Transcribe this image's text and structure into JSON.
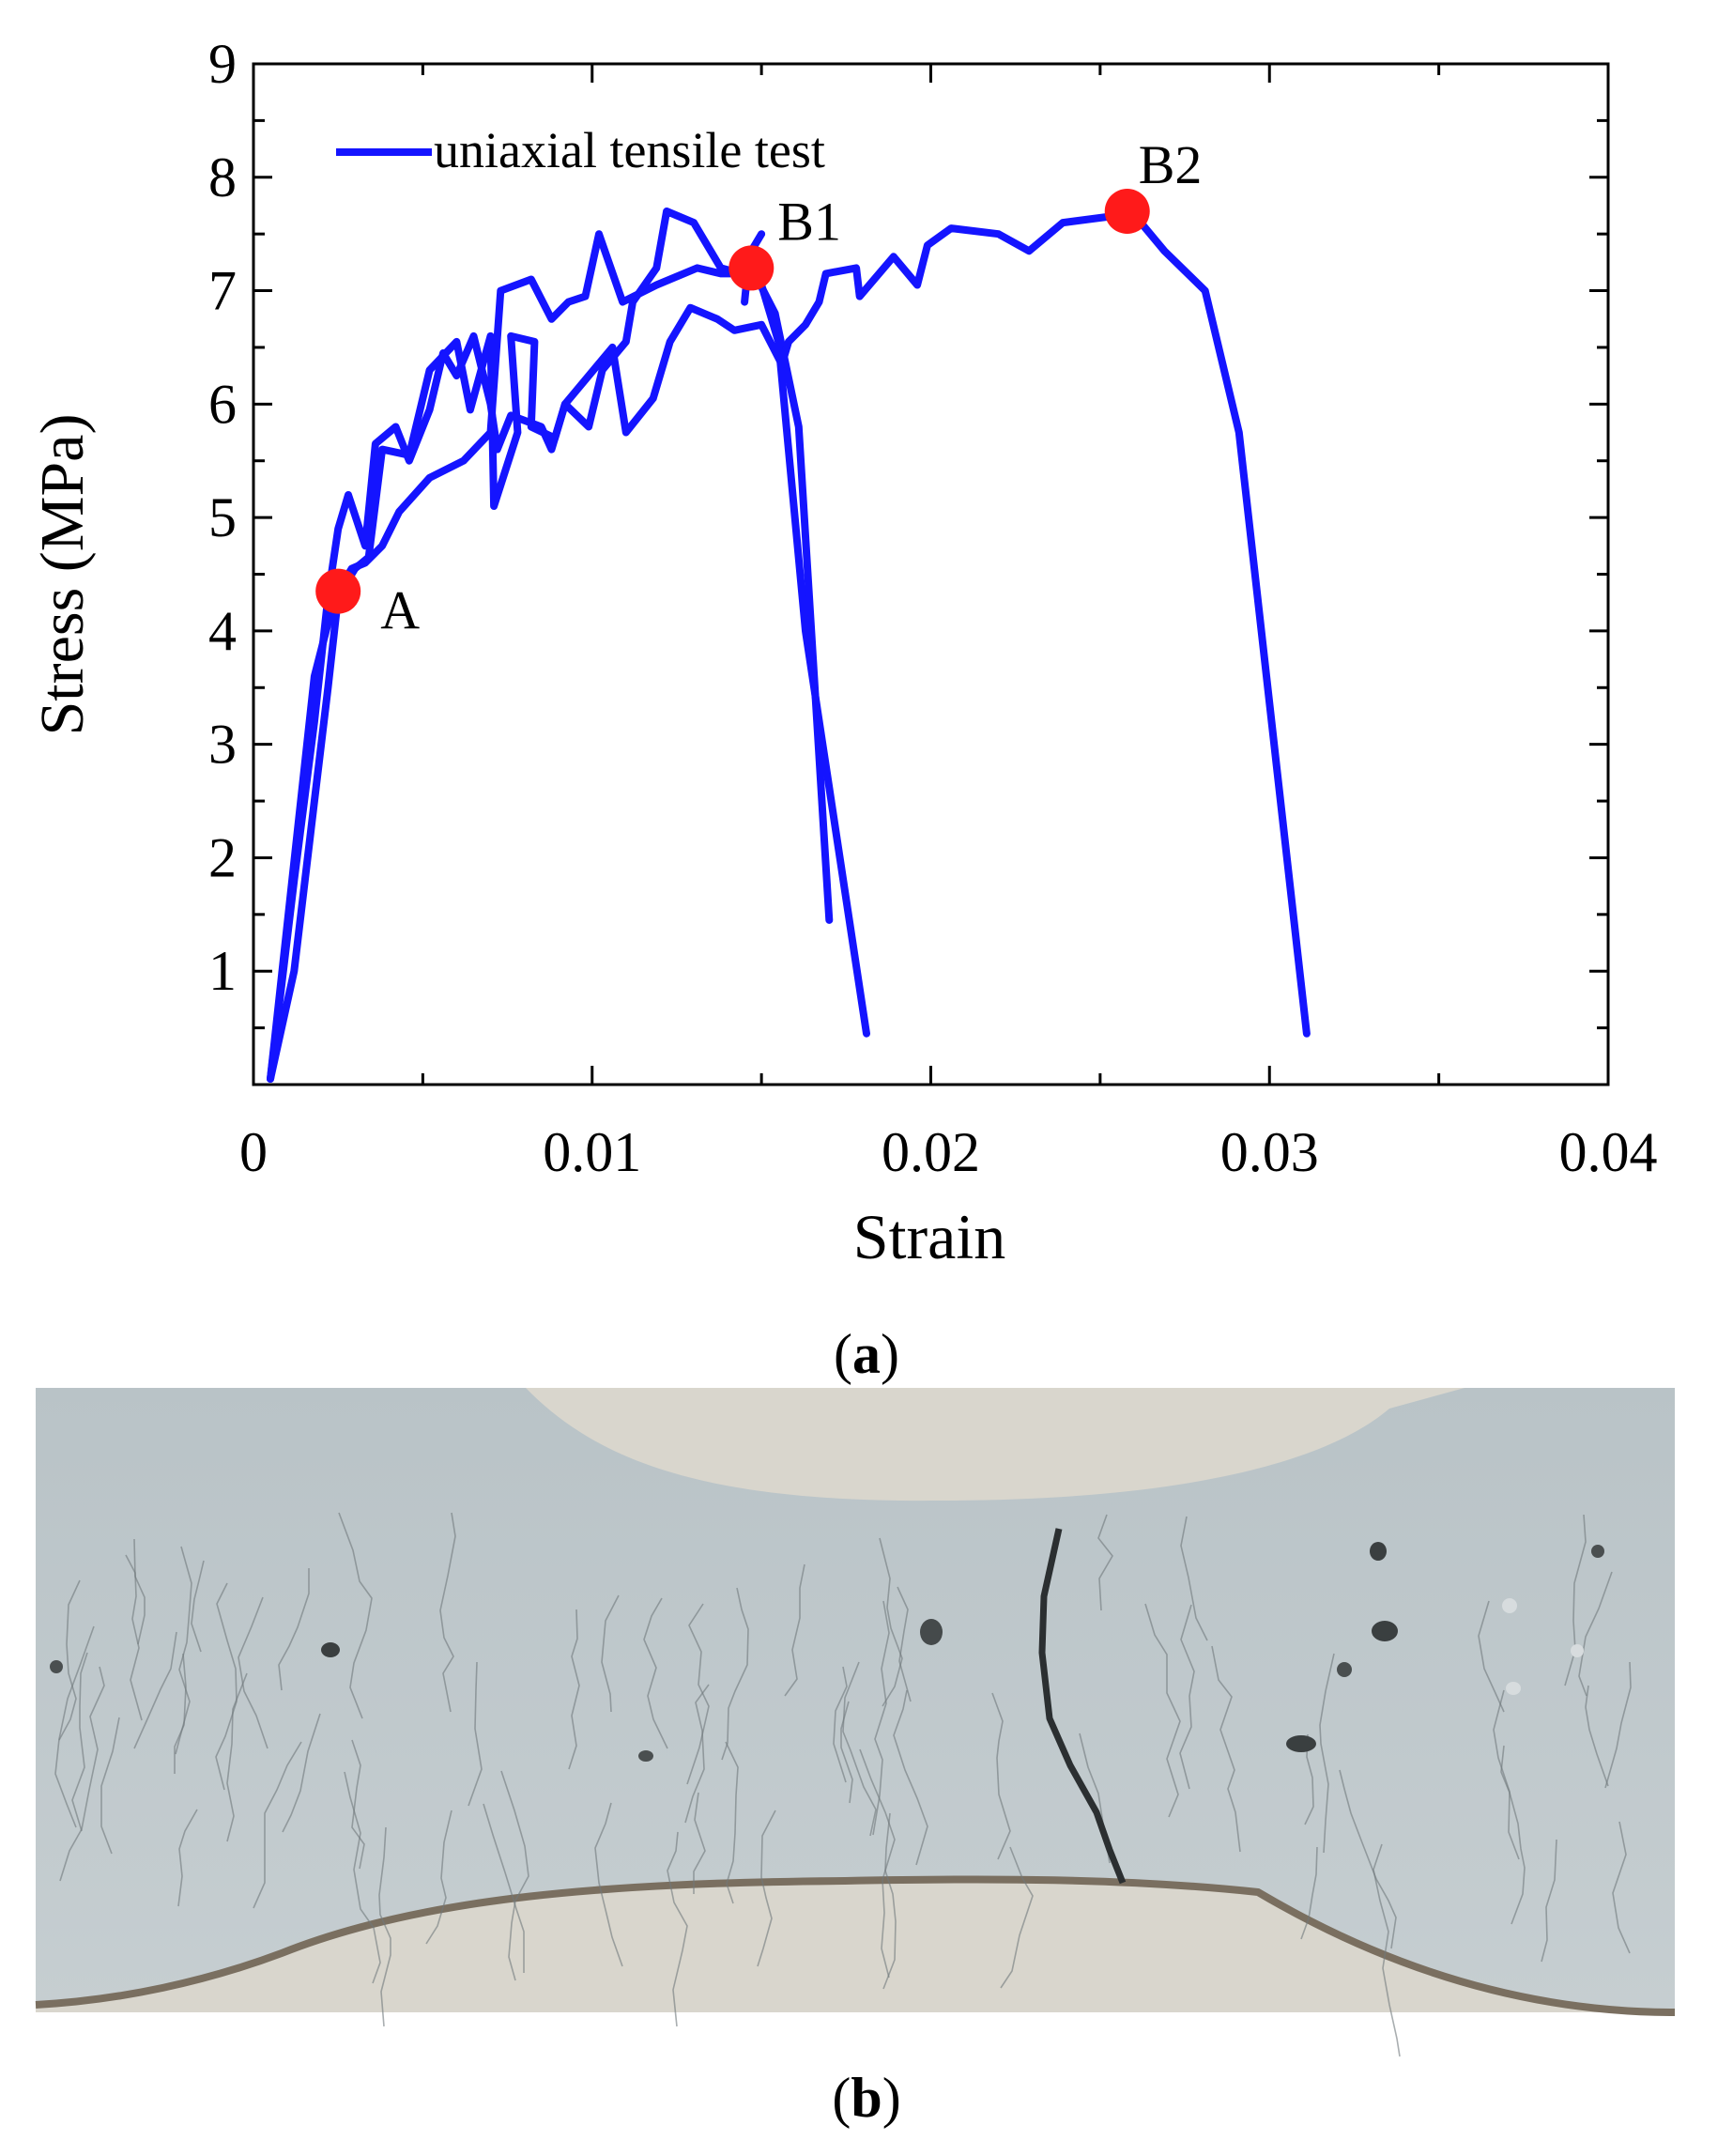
{
  "chart_data": {
    "type": "line",
    "title": "",
    "xlabel": "Strain",
    "ylabel": "Stress (MPa)",
    "xlim": [
      0,
      0.04
    ],
    "ylim": [
      0,
      9
    ],
    "x_ticks": [
      "0",
      "0.01",
      "0.02",
      "0.03",
      "0.04"
    ],
    "y_ticks": [
      "1",
      "2",
      "3",
      "4",
      "5",
      "6",
      "7",
      "8",
      "9"
    ],
    "grid": false,
    "legend": "top-left",
    "series": [
      {
        "name": "uniaxial tensile test",
        "color": "#1414ff",
        "segments": [
          [
            [
              0.0005,
              0.05
            ],
            [
              0.0012,
              1.8
            ],
            [
              0.0018,
              3.2
            ],
            [
              0.0022,
              4.3
            ],
            [
              0.0025,
              4.9
            ],
            [
              0.0028,
              5.2
            ],
            [
              0.0033,
              4.75
            ],
            [
              0.0036,
              5.65
            ],
            [
              0.0042,
              5.8
            ],
            [
              0.0046,
              5.5
            ],
            [
              0.0052,
              5.95
            ],
            [
              0.0056,
              6.45
            ],
            [
              0.006,
              6.25
            ],
            [
              0.0065,
              6.6
            ],
            [
              0.007,
              6.0
            ],
            [
              0.0072,
              5.6
            ],
            [
              0.0076,
              5.9
            ],
            [
              0.0085,
              5.8
            ],
            [
              0.0088,
              5.6
            ],
            [
              0.0092,
              6.0
            ],
            [
              0.0099,
              5.8
            ],
            [
              0.0103,
              6.3
            ],
            [
              0.011,
              6.55
            ],
            [
              0.0112,
              6.9
            ],
            [
              0.0119,
              7.2
            ],
            [
              0.0122,
              7.7
            ],
            [
              0.013,
              7.6
            ],
            [
              0.0138,
              7.2
            ],
            [
              0.0144,
              7.15
            ],
            [
              0.0148,
              7.15
            ],
            [
              0.0154,
              6.8
            ],
            [
              0.0161,
              5.8
            ],
            [
              0.017,
              1.45
            ]
          ],
          [
            [
              0.0005,
              0.05
            ],
            [
              0.0018,
              3.6
            ],
            [
              0.0024,
              4.3
            ],
            [
              0.0029,
              4.55
            ],
            [
              0.0033,
              4.6
            ],
            [
              0.0038,
              4.75
            ],
            [
              0.0043,
              5.05
            ],
            [
              0.0052,
              5.35
            ],
            [
              0.0062,
              5.5
            ],
            [
              0.007,
              5.75
            ],
            [
              0.0073,
              7.0
            ],
            [
              0.0082,
              7.1
            ],
            [
              0.0088,
              6.75
            ],
            [
              0.0093,
              6.9
            ],
            [
              0.0098,
              6.95
            ],
            [
              0.0102,
              7.5
            ],
            [
              0.0109,
              6.9
            ],
            [
              0.0119,
              7.05
            ],
            [
              0.0131,
              7.2
            ],
            [
              0.0138,
              7.15
            ],
            [
              0.0144,
              7.15
            ],
            [
              0.0149,
              7.15
            ],
            [
              0.0155,
              6.55
            ],
            [
              0.0163,
              4.0
            ],
            [
              0.0181,
              0.45
            ]
          ],
          [
            [
              0.0005,
              0.05
            ],
            [
              0.0012,
              1.0
            ],
            [
              0.0018,
              2.5
            ],
            [
              0.0022,
              3.5
            ],
            [
              0.0025,
              4.3
            ],
            [
              0.003,
              4.55
            ],
            [
              0.0034,
              4.65
            ],
            [
              0.0038,
              5.6
            ],
            [
              0.0046,
              5.55
            ],
            [
              0.0052,
              6.3
            ],
            [
              0.006,
              6.55
            ],
            [
              0.0064,
              5.95
            ],
            [
              0.007,
              6.6
            ],
            [
              0.0071,
              5.1
            ],
            [
              0.0078,
              5.75
            ],
            [
              0.0076,
              6.6
            ],
            [
              0.0083,
              6.55
            ],
            [
              0.0082,
              5.8
            ],
            [
              0.0089,
              5.7
            ],
            [
              0.0092,
              6.0
            ],
            [
              0.0106,
              6.5
            ],
            [
              0.011,
              5.75
            ],
            [
              0.0118,
              6.05
            ],
            [
              0.0123,
              6.55
            ],
            [
              0.0129,
              6.85
            ],
            [
              0.0137,
              6.75
            ],
            [
              0.0142,
              6.65
            ],
            [
              0.015,
              6.7
            ],
            [
              0.0156,
              6.35
            ],
            [
              0.0158,
              6.55
            ],
            [
              0.0163,
              6.7
            ],
            [
              0.0167,
              6.9
            ],
            [
              0.0169,
              7.15
            ],
            [
              0.0178,
              7.2
            ],
            [
              0.0179,
              6.95
            ],
            [
              0.0189,
              7.3
            ],
            [
              0.0196,
              7.05
            ],
            [
              0.0199,
              7.4
            ],
            [
              0.0206,
              7.55
            ],
            [
              0.022,
              7.5
            ],
            [
              0.0229,
              7.35
            ],
            [
              0.0239,
              7.6
            ],
            [
              0.0252,
              7.65
            ],
            [
              0.0262,
              7.6
            ],
            [
              0.0269,
              7.35
            ],
            [
              0.0281,
              7.0
            ],
            [
              0.0291,
              5.75
            ],
            [
              0.0311,
              0.45
            ]
          ],
          [
            [
              0.0145,
              6.9
            ],
            [
              0.0146,
              7.2
            ],
            [
              0.0147,
              7.35
            ],
            [
              0.015,
              7.5
            ]
          ]
        ]
      }
    ],
    "markers": [
      {
        "label": "A",
        "x": 0.0025,
        "y": 4.35
      },
      {
        "label": "B1",
        "x": 0.0147,
        "y": 7.2
      },
      {
        "label": "B2",
        "x": 0.0258,
        "y": 7.7
      }
    ]
  },
  "captions": {
    "a": "a",
    "b": "b"
  }
}
